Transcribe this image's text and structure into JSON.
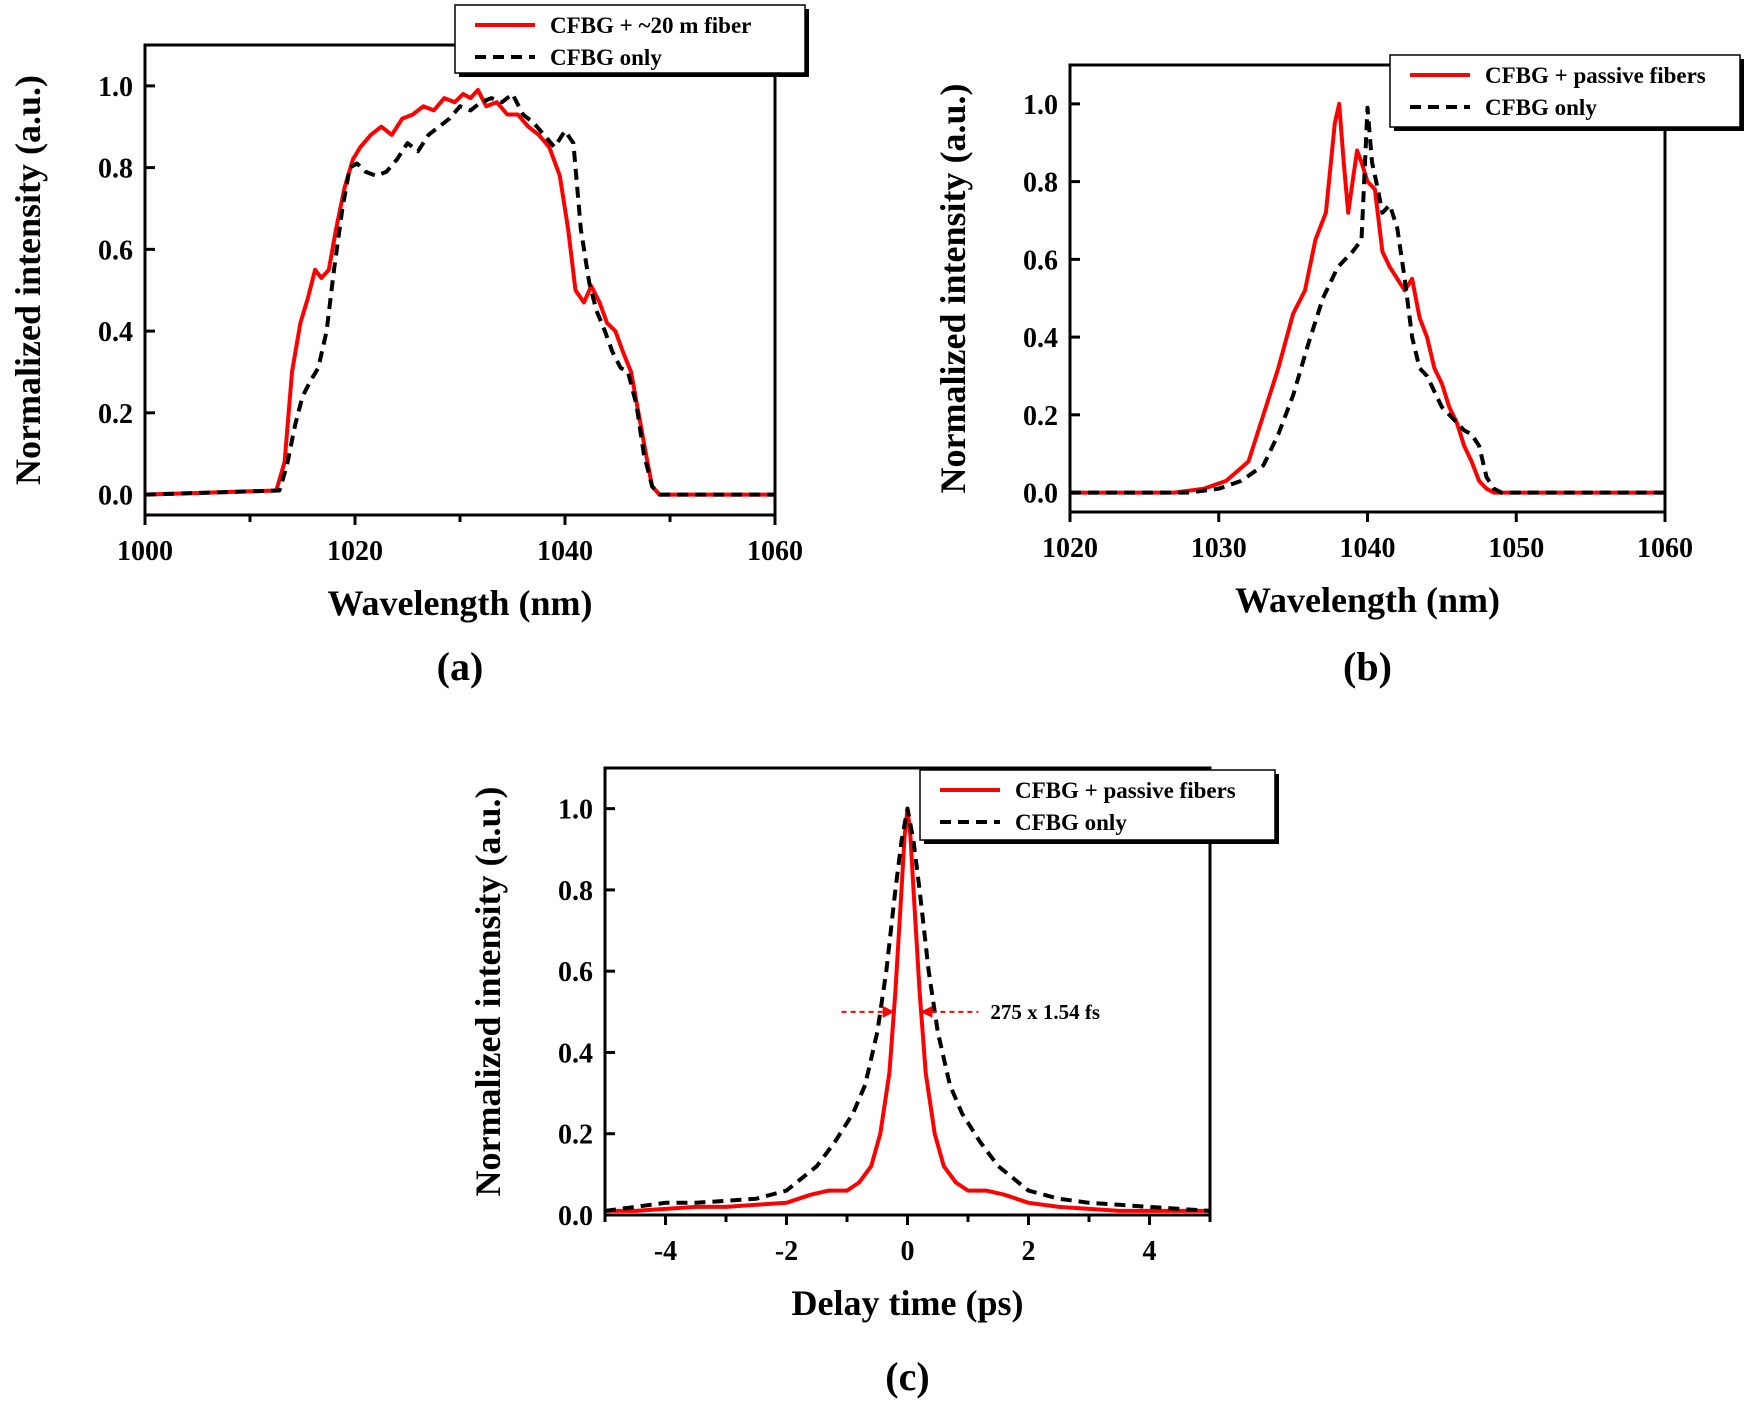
{
  "colors": {
    "red_series": "#ff0000",
    "black_series": "#000000",
    "frame": "#000000"
  },
  "chart_data": [
    {
      "id": "a",
      "panel_label": "(a)",
      "type": "line",
      "xlabel": "Wavelength (nm)",
      "ylabel": "Normalized intensity (a.u.)",
      "xlim": [
        1000,
        1060
      ],
      "ylim": [
        -0.05,
        1.1
      ],
      "xticks": [
        1000,
        1020,
        1040,
        1060
      ],
      "xticks_minor": [
        1010,
        1030,
        1050
      ],
      "yticks": [
        0.0,
        0.2,
        0.4,
        0.6,
        0.8,
        1.0
      ],
      "tick_labels_y": [
        "0.0",
        "0.2",
        "0.4",
        "0.6",
        "0.8",
        "1.0"
      ],
      "legend_position": "top-center, outside frame",
      "series": [
        {
          "name": "CFBG + ~20 m fiber",
          "style": "solid",
          "color": "#ff0000",
          "x": [
            1000,
            1012.5,
            1013.3,
            1014.0,
            1014.8,
            1015.5,
            1016.2,
            1016.8,
            1017.5,
            1018.2,
            1019.0,
            1019.8,
            1020.5,
            1021.5,
            1022.5,
            1023.5,
            1024.5,
            1025.5,
            1026.5,
            1027.5,
            1028.5,
            1029.5,
            1030.3,
            1031.0,
            1031.7,
            1032.5,
            1033.5,
            1034.5,
            1035.5,
            1036.5,
            1037.5,
            1038.5,
            1039.5,
            1040.3,
            1041.0,
            1041.8,
            1042.5,
            1043.3,
            1044.0,
            1044.8,
            1045.5,
            1046.3,
            1047.0,
            1047.7,
            1048.3,
            1049.0,
            1060
          ],
          "y": [
            0.0,
            0.01,
            0.08,
            0.3,
            0.42,
            0.48,
            0.55,
            0.53,
            0.55,
            0.65,
            0.75,
            0.82,
            0.85,
            0.88,
            0.9,
            0.88,
            0.92,
            0.93,
            0.95,
            0.94,
            0.97,
            0.96,
            0.98,
            0.97,
            0.99,
            0.95,
            0.96,
            0.93,
            0.93,
            0.9,
            0.88,
            0.85,
            0.78,
            0.65,
            0.5,
            0.47,
            0.51,
            0.47,
            0.42,
            0.4,
            0.35,
            0.3,
            0.2,
            0.1,
            0.02,
            0.0,
            0.0
          ]
        },
        {
          "name": "CFBG only",
          "style": "dashed",
          "color": "#000000",
          "x": [
            1000,
            1012.8,
            1013.5,
            1014.3,
            1015.0,
            1015.8,
            1016.5,
            1017.3,
            1018.0,
            1018.8,
            1019.5,
            1020.2,
            1021.0,
            1022.0,
            1023.0,
            1024.0,
            1025.0,
            1026.0,
            1027.0,
            1028.0,
            1029.0,
            1030.0,
            1031.0,
            1032.0,
            1033.0,
            1034.0,
            1035.0,
            1036.0,
            1037.0,
            1038.0,
            1039.0,
            1040.0,
            1040.8,
            1041.5,
            1042.3,
            1043.0,
            1043.8,
            1044.5,
            1045.3,
            1046.0,
            1046.8,
            1047.5,
            1048.3,
            1049.0,
            1060
          ],
          "y": [
            0.0,
            0.01,
            0.07,
            0.17,
            0.24,
            0.28,
            0.31,
            0.4,
            0.55,
            0.7,
            0.8,
            0.81,
            0.79,
            0.78,
            0.79,
            0.82,
            0.86,
            0.84,
            0.88,
            0.9,
            0.92,
            0.95,
            0.94,
            0.96,
            0.97,
            0.96,
            0.98,
            0.93,
            0.91,
            0.88,
            0.85,
            0.89,
            0.86,
            0.65,
            0.52,
            0.45,
            0.4,
            0.35,
            0.31,
            0.3,
            0.22,
            0.1,
            0.02,
            0.0,
            0.0
          ]
        }
      ]
    },
    {
      "id": "b",
      "panel_label": "(b)",
      "type": "line",
      "xlabel": "Wavelength (nm)",
      "ylabel": "Normalized intensity (a.u.)",
      "xlim": [
        1020,
        1060
      ],
      "ylim": [
        -0.05,
        1.1
      ],
      "xticks": [
        1020,
        1030,
        1040,
        1050,
        1060
      ],
      "xticks_minor": [],
      "yticks": [
        0.0,
        0.2,
        0.4,
        0.6,
        0.8,
        1.0
      ],
      "tick_labels_y": [
        "0.0",
        "0.2",
        "0.4",
        "0.6",
        "0.8",
        "1.0"
      ],
      "legend_position": "top-right",
      "series": [
        {
          "name": "CFBG + passive fibers",
          "style": "solid",
          "color": "#ff0000",
          "x": [
            1020,
            1027.0,
            1029.0,
            1030.5,
            1032.0,
            1033.0,
            1034.0,
            1035.0,
            1035.8,
            1036.5,
            1037.2,
            1037.8,
            1038.1,
            1038.4,
            1038.7,
            1039.0,
            1039.3,
            1039.6,
            1040.0,
            1040.5,
            1041.0,
            1041.5,
            1042.0,
            1042.5,
            1043.0,
            1043.5,
            1044.0,
            1044.5,
            1045.0,
            1045.5,
            1046.0,
            1046.5,
            1047.0,
            1047.5,
            1048.0,
            1048.5,
            1060
          ],
          "y": [
            0.0,
            0.0,
            0.01,
            0.03,
            0.08,
            0.2,
            0.32,
            0.46,
            0.52,
            0.65,
            0.72,
            0.95,
            1.0,
            0.85,
            0.72,
            0.8,
            0.88,
            0.85,
            0.8,
            0.78,
            0.62,
            0.58,
            0.55,
            0.52,
            0.55,
            0.45,
            0.4,
            0.32,
            0.28,
            0.22,
            0.18,
            0.12,
            0.08,
            0.03,
            0.01,
            0.0,
            0.0
          ]
        },
        {
          "name": "CFBG only",
          "style": "dashed",
          "color": "#000000",
          "x": [
            1020,
            1028.0,
            1030.0,
            1031.5,
            1033.0,
            1034.0,
            1035.0,
            1036.0,
            1037.0,
            1038.0,
            1039.0,
            1039.6,
            1040.0,
            1040.3,
            1040.7,
            1041.0,
            1041.5,
            1042.0,
            1042.5,
            1043.0,
            1043.5,
            1044.0,
            1044.5,
            1045.0,
            1045.5,
            1046.0,
            1046.5,
            1047.0,
            1047.5,
            1048.0,
            1048.5,
            1049.0,
            1060
          ],
          "y": [
            0.0,
            0.0,
            0.01,
            0.03,
            0.07,
            0.15,
            0.25,
            0.38,
            0.5,
            0.58,
            0.62,
            0.65,
            0.99,
            0.85,
            0.78,
            0.72,
            0.74,
            0.68,
            0.55,
            0.4,
            0.32,
            0.3,
            0.26,
            0.22,
            0.2,
            0.18,
            0.16,
            0.15,
            0.12,
            0.04,
            0.01,
            0.0,
            0.0
          ]
        }
      ]
    },
    {
      "id": "c",
      "panel_label": "(c)",
      "type": "line",
      "xlabel": "Delay time (ps)",
      "ylabel": "Normalized intensity (a.u.)",
      "xlim": [
        -5,
        5
      ],
      "ylim": [
        0,
        1.1
      ],
      "xticks": [
        -4,
        -2,
        0,
        2,
        4
      ],
      "xticks_minor": [
        -5,
        -3,
        -1,
        1,
        3,
        5
      ],
      "yticks": [
        0.0,
        0.2,
        0.4,
        0.6,
        0.8,
        1.0
      ],
      "tick_labels_y": [
        "0.0",
        "0.2",
        "0.4",
        "0.6",
        "0.8",
        "1.0"
      ],
      "legend_position": "top-right",
      "annotation": {
        "text": "275 x 1.54 fs",
        "x_left": -0.18,
        "x_right": 0.18,
        "y": 0.5
      },
      "series": [
        {
          "name": "CFBG + passive fibers",
          "style": "solid",
          "color": "#ff0000",
          "x": [
            -5.0,
            -4.5,
            -4.0,
            -3.5,
            -3.0,
            -2.5,
            -2.0,
            -1.6,
            -1.3,
            -1.0,
            -0.8,
            -0.6,
            -0.45,
            -0.3,
            -0.2,
            -0.1,
            -0.05,
            0.0,
            0.05,
            0.1,
            0.2,
            0.3,
            0.45,
            0.6,
            0.8,
            1.0,
            1.3,
            1.6,
            2.0,
            2.5,
            3.0,
            3.5,
            4.0,
            4.5,
            5.0
          ],
          "y": [
            0.01,
            0.01,
            0.015,
            0.02,
            0.02,
            0.025,
            0.03,
            0.05,
            0.06,
            0.06,
            0.08,
            0.12,
            0.2,
            0.35,
            0.55,
            0.8,
            0.93,
            1.0,
            0.93,
            0.8,
            0.55,
            0.35,
            0.2,
            0.12,
            0.08,
            0.06,
            0.06,
            0.05,
            0.03,
            0.02,
            0.015,
            0.01,
            0.01,
            0.01,
            0.01
          ]
        },
        {
          "name": "CFBG only",
          "style": "dashed",
          "color": "#000000",
          "x": [
            -5.0,
            -4.5,
            -4.0,
            -3.5,
            -3.0,
            -2.5,
            -2.0,
            -1.5,
            -1.2,
            -0.9,
            -0.7,
            -0.5,
            -0.35,
            -0.2,
            -0.1,
            0.0,
            0.1,
            0.2,
            0.35,
            0.5,
            0.7,
            0.9,
            1.2,
            1.5,
            2.0,
            2.5,
            3.0,
            3.5,
            4.0,
            4.5,
            5.0
          ],
          "y": [
            0.01,
            0.02,
            0.03,
            0.03,
            0.035,
            0.04,
            0.06,
            0.12,
            0.18,
            0.25,
            0.32,
            0.45,
            0.6,
            0.8,
            0.92,
            1.0,
            0.92,
            0.8,
            0.6,
            0.45,
            0.32,
            0.25,
            0.18,
            0.12,
            0.06,
            0.04,
            0.03,
            0.025,
            0.02,
            0.015,
            0.01
          ]
        }
      ]
    }
  ]
}
